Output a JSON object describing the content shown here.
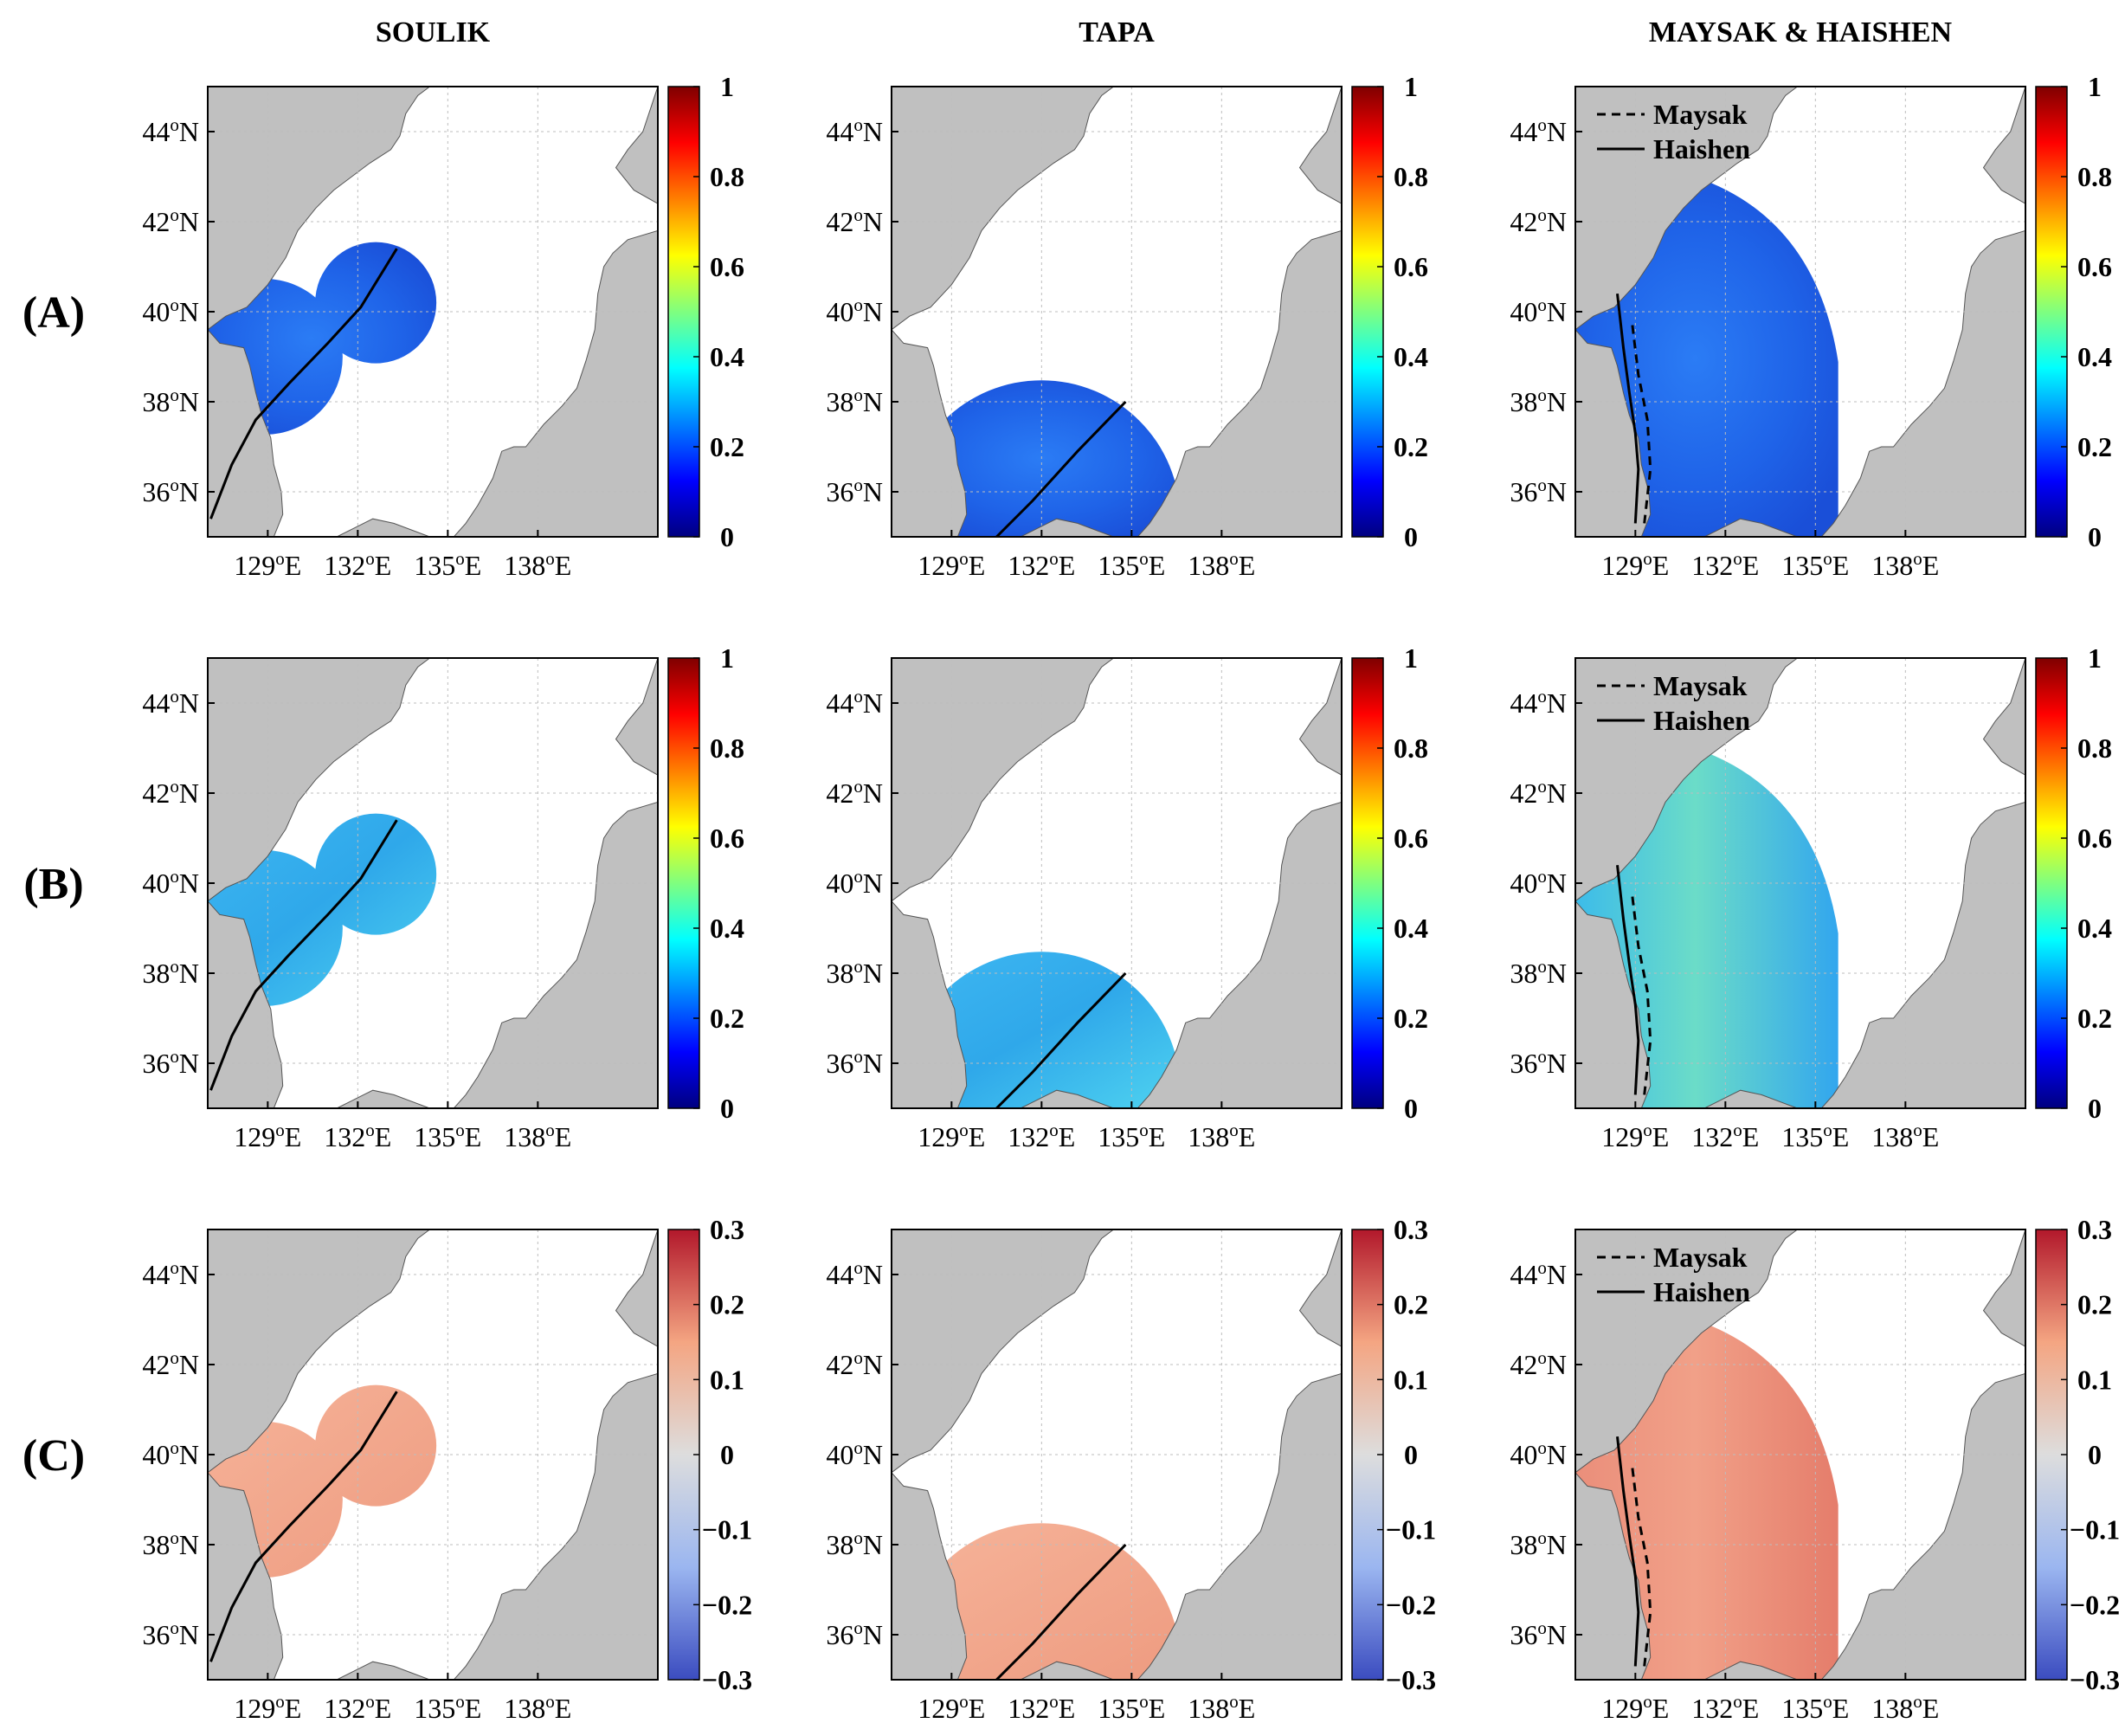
{
  "columns": [
    "SOULIK",
    "TAPA",
    "MAYSAK & HAISHEN"
  ],
  "rows": [
    "(A)",
    "(B)",
    "(C)"
  ],
  "lat_ticks": [
    "44",
    "42",
    "40",
    "38",
    "36"
  ],
  "lat_suffix": "N",
  "lon_ticks": [
    "129",
    "132",
    "135",
    "138"
  ],
  "lon_suffix": "E",
  "degree_symbol": "o",
  "colorbar_ticks": {
    "row_a": [
      "1",
      "0.8",
      "0.6",
      "0.4",
      "0.2",
      "0"
    ],
    "row_b": [
      "1",
      "0.8",
      "0.6",
      "0.4",
      "0.2",
      "0"
    ],
    "row_c": [
      "0.3",
      "0.2",
      "0.1",
      "0",
      "−0.1",
      "−0.2",
      "−0.3"
    ]
  },
  "legend": {
    "dashed": "Maysak",
    "solid": "Haishen"
  },
  "colors": {
    "land": "#c0c0c0",
    "sea": "#ffffff",
    "grid": "#bdbdbd",
    "track": "#000000"
  }
}
